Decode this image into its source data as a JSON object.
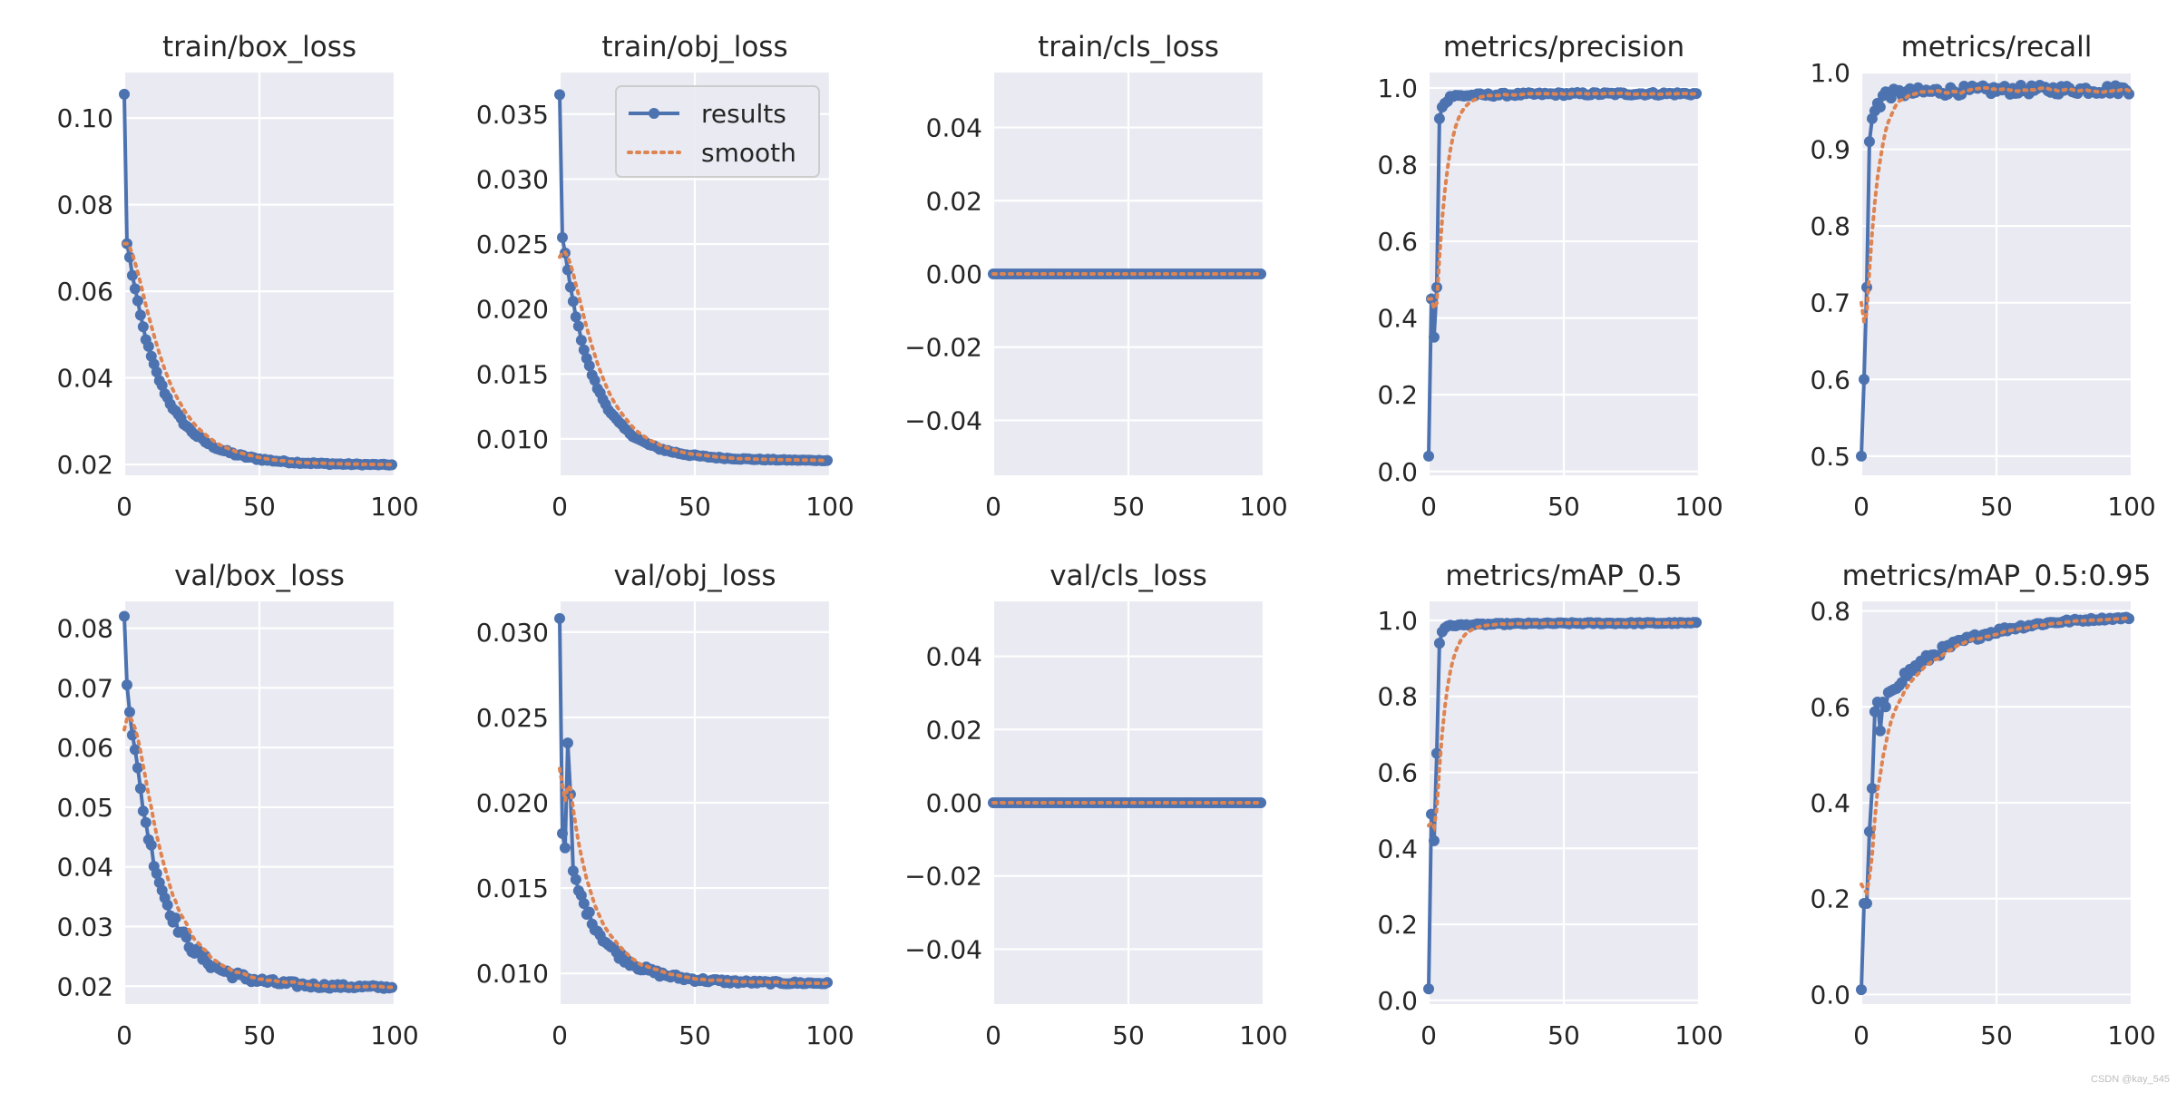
{
  "colors": {
    "panel_bg": "#eaeaf2",
    "grid": "#ffffff",
    "results": "#4c72b0",
    "smooth": "#dd8452",
    "text": "#262626"
  },
  "legend": {
    "results_label": "results",
    "smooth_label": "smooth"
  },
  "watermark": "CSDN @kay_545",
  "chart_data": [
    {
      "title": "train/box_loss",
      "type": "line",
      "xlim": [
        0,
        100
      ],
      "ylim": [
        0.0175,
        0.1105
      ],
      "xticks": [
        0,
        50,
        100
      ],
      "yticks": [
        0.02,
        0.04,
        0.06,
        0.08,
        0.1
      ],
      "ytick_labels": [
        "0.02",
        "0.04",
        "0.06",
        "0.08",
        "0.10"
      ],
      "curve": {
        "kind": "decay",
        "start": 0.1055,
        "second": 0.071,
        "end": 0.0198,
        "rate": 0.055,
        "noise": 0.0006
      },
      "smooth_start": 0.071
    },
    {
      "title": "train/obj_loss",
      "type": "line",
      "xlim": [
        0,
        100
      ],
      "ylim": [
        0.0072,
        0.0382
      ],
      "xticks": [
        0,
        50,
        100
      ],
      "yticks": [
        0.01,
        0.015,
        0.02,
        0.025,
        0.03,
        0.035
      ],
      "ytick_labels": [
        "0.010",
        "0.015",
        "0.020",
        "0.025",
        "0.030",
        "0.035"
      ],
      "curve": {
        "kind": "decay",
        "start": 0.0365,
        "second": 0.0255,
        "end": 0.0083,
        "rate": 0.06,
        "noise": 0.00015
      },
      "smooth_start": 0.024,
      "legend": true
    },
    {
      "title": "train/cls_loss",
      "type": "line",
      "xlim": [
        0,
        100
      ],
      "ylim": [
        -0.055,
        0.055
      ],
      "xticks": [
        0,
        50,
        100
      ],
      "yticks": [
        -0.04,
        -0.02,
        0.0,
        0.02,
        0.04
      ],
      "ytick_labels": [
        "−0.04",
        "−0.02",
        "0.00",
        "0.02",
        "0.04"
      ],
      "curve": {
        "kind": "flat",
        "value": 0.0
      }
    },
    {
      "title": "metrics/precision",
      "type": "line",
      "xlim": [
        0,
        100
      ],
      "ylim": [
        -0.01,
        1.04
      ],
      "xticks": [
        0,
        50,
        100
      ],
      "yticks": [
        0.0,
        0.2,
        0.4,
        0.6,
        0.8,
        1.0
      ],
      "ytick_labels": [
        "0.0",
        "0.2",
        "0.4",
        "0.6",
        "0.8",
        "1.0"
      ],
      "curve": {
        "kind": "rise",
        "early": [
          0.04,
          0.45,
          0.35,
          0.48,
          0.92,
          0.95,
          0.96,
          0.965
        ],
        "plateau": 0.985,
        "noise": 0.004
      },
      "smooth_start": 0.45
    },
    {
      "title": "metrics/recall",
      "type": "line",
      "xlim": [
        0,
        100
      ],
      "ylim": [
        0.475,
        1.0
      ],
      "xticks": [
        0,
        50,
        100
      ],
      "yticks": [
        0.5,
        0.6,
        0.7,
        0.8,
        0.9,
        1.0
      ],
      "ytick_labels": [
        "0.5",
        "0.6",
        "0.7",
        "0.8",
        "0.9",
        "1.0"
      ],
      "curve": {
        "kind": "rise",
        "early": [
          0.5,
          0.6,
          0.72,
          0.91,
          0.94,
          0.95,
          0.96,
          0.955,
          0.97
        ],
        "plateau": 0.978,
        "noise": 0.006
      },
      "smooth_start": 0.7
    },
    {
      "title": "val/box_loss",
      "type": "line",
      "xlim": [
        0,
        100
      ],
      "ylim": [
        0.017,
        0.0845
      ],
      "xticks": [
        0,
        50,
        100
      ],
      "yticks": [
        0.02,
        0.03,
        0.04,
        0.05,
        0.06,
        0.07,
        0.08
      ],
      "ytick_labels": [
        "0.02",
        "0.03",
        "0.04",
        "0.05",
        "0.06",
        "0.07",
        "0.08"
      ],
      "curve": {
        "kind": "decay",
        "start": 0.082,
        "second": 0.0705,
        "end": 0.0197,
        "rate": 0.06,
        "noise": 0.0013
      },
      "smooth_start": 0.063
    },
    {
      "title": "val/obj_loss",
      "type": "line",
      "xlim": [
        0,
        100
      ],
      "ylim": [
        0.0082,
        0.0318
      ],
      "xticks": [
        0,
        50,
        100
      ],
      "yticks": [
        0.01,
        0.015,
        0.02,
        0.025,
        0.03
      ],
      "ytick_labels": [
        "0.010",
        "0.015",
        "0.020",
        "0.025",
        "0.030"
      ],
      "curve": {
        "kind": "decay",
        "start": 0.0308,
        "second": 0.0182,
        "end": 0.0094,
        "rate": 0.055,
        "noise": 0.0003,
        "bumps": [
          [
            3,
            0.0235
          ],
          [
            4,
            0.0205
          ]
        ]
      },
      "smooth_start": 0.022
    },
    {
      "title": "val/cls_loss",
      "type": "line",
      "xlim": [
        0,
        100
      ],
      "ylim": [
        -0.055,
        0.055
      ],
      "xticks": [
        0,
        50,
        100
      ],
      "yticks": [
        -0.04,
        -0.02,
        0.0,
        0.02,
        0.04
      ],
      "ytick_labels": [
        "−0.04",
        "−0.02",
        "0.00",
        "0.02",
        "0.04"
      ],
      "curve": {
        "kind": "flat",
        "value": 0.0
      }
    },
    {
      "title": "metrics/mAP_0.5",
      "type": "line",
      "xlim": [
        0,
        100
      ],
      "ylim": [
        -0.01,
        1.05
      ],
      "xticks": [
        0,
        50,
        100
      ],
      "yticks": [
        0.0,
        0.2,
        0.4,
        0.6,
        0.8,
        1.0
      ],
      "ytick_labels": [
        "0.0",
        "0.2",
        "0.4",
        "0.6",
        "0.8",
        "1.0"
      ],
      "curve": {
        "kind": "rise",
        "early": [
          0.03,
          0.49,
          0.42,
          0.65,
          0.94,
          0.97,
          0.98,
          0.985
        ],
        "plateau": 0.993,
        "noise": 0.002
      },
      "smooth_start": 0.46
    },
    {
      "title": "metrics/mAP_0.5:0.95",
      "type": "line",
      "xlim": [
        0,
        100
      ],
      "ylim": [
        -0.02,
        0.82
      ],
      "xticks": [
        0,
        50,
        100
      ],
      "yticks": [
        0.0,
        0.2,
        0.4,
        0.6,
        0.8
      ],
      "ytick_labels": [
        "0.0",
        "0.2",
        "0.4",
        "0.6",
        "0.8"
      ],
      "curve": {
        "kind": "rise_slow",
        "early": [
          0.01,
          0.19,
          0.19,
          0.34,
          0.43,
          0.59,
          0.61,
          0.55,
          0.61,
          0.6,
          0.63
        ],
        "plateau": 0.79,
        "rate": 0.04,
        "noise": 0.015
      },
      "smooth_start": 0.23
    }
  ]
}
